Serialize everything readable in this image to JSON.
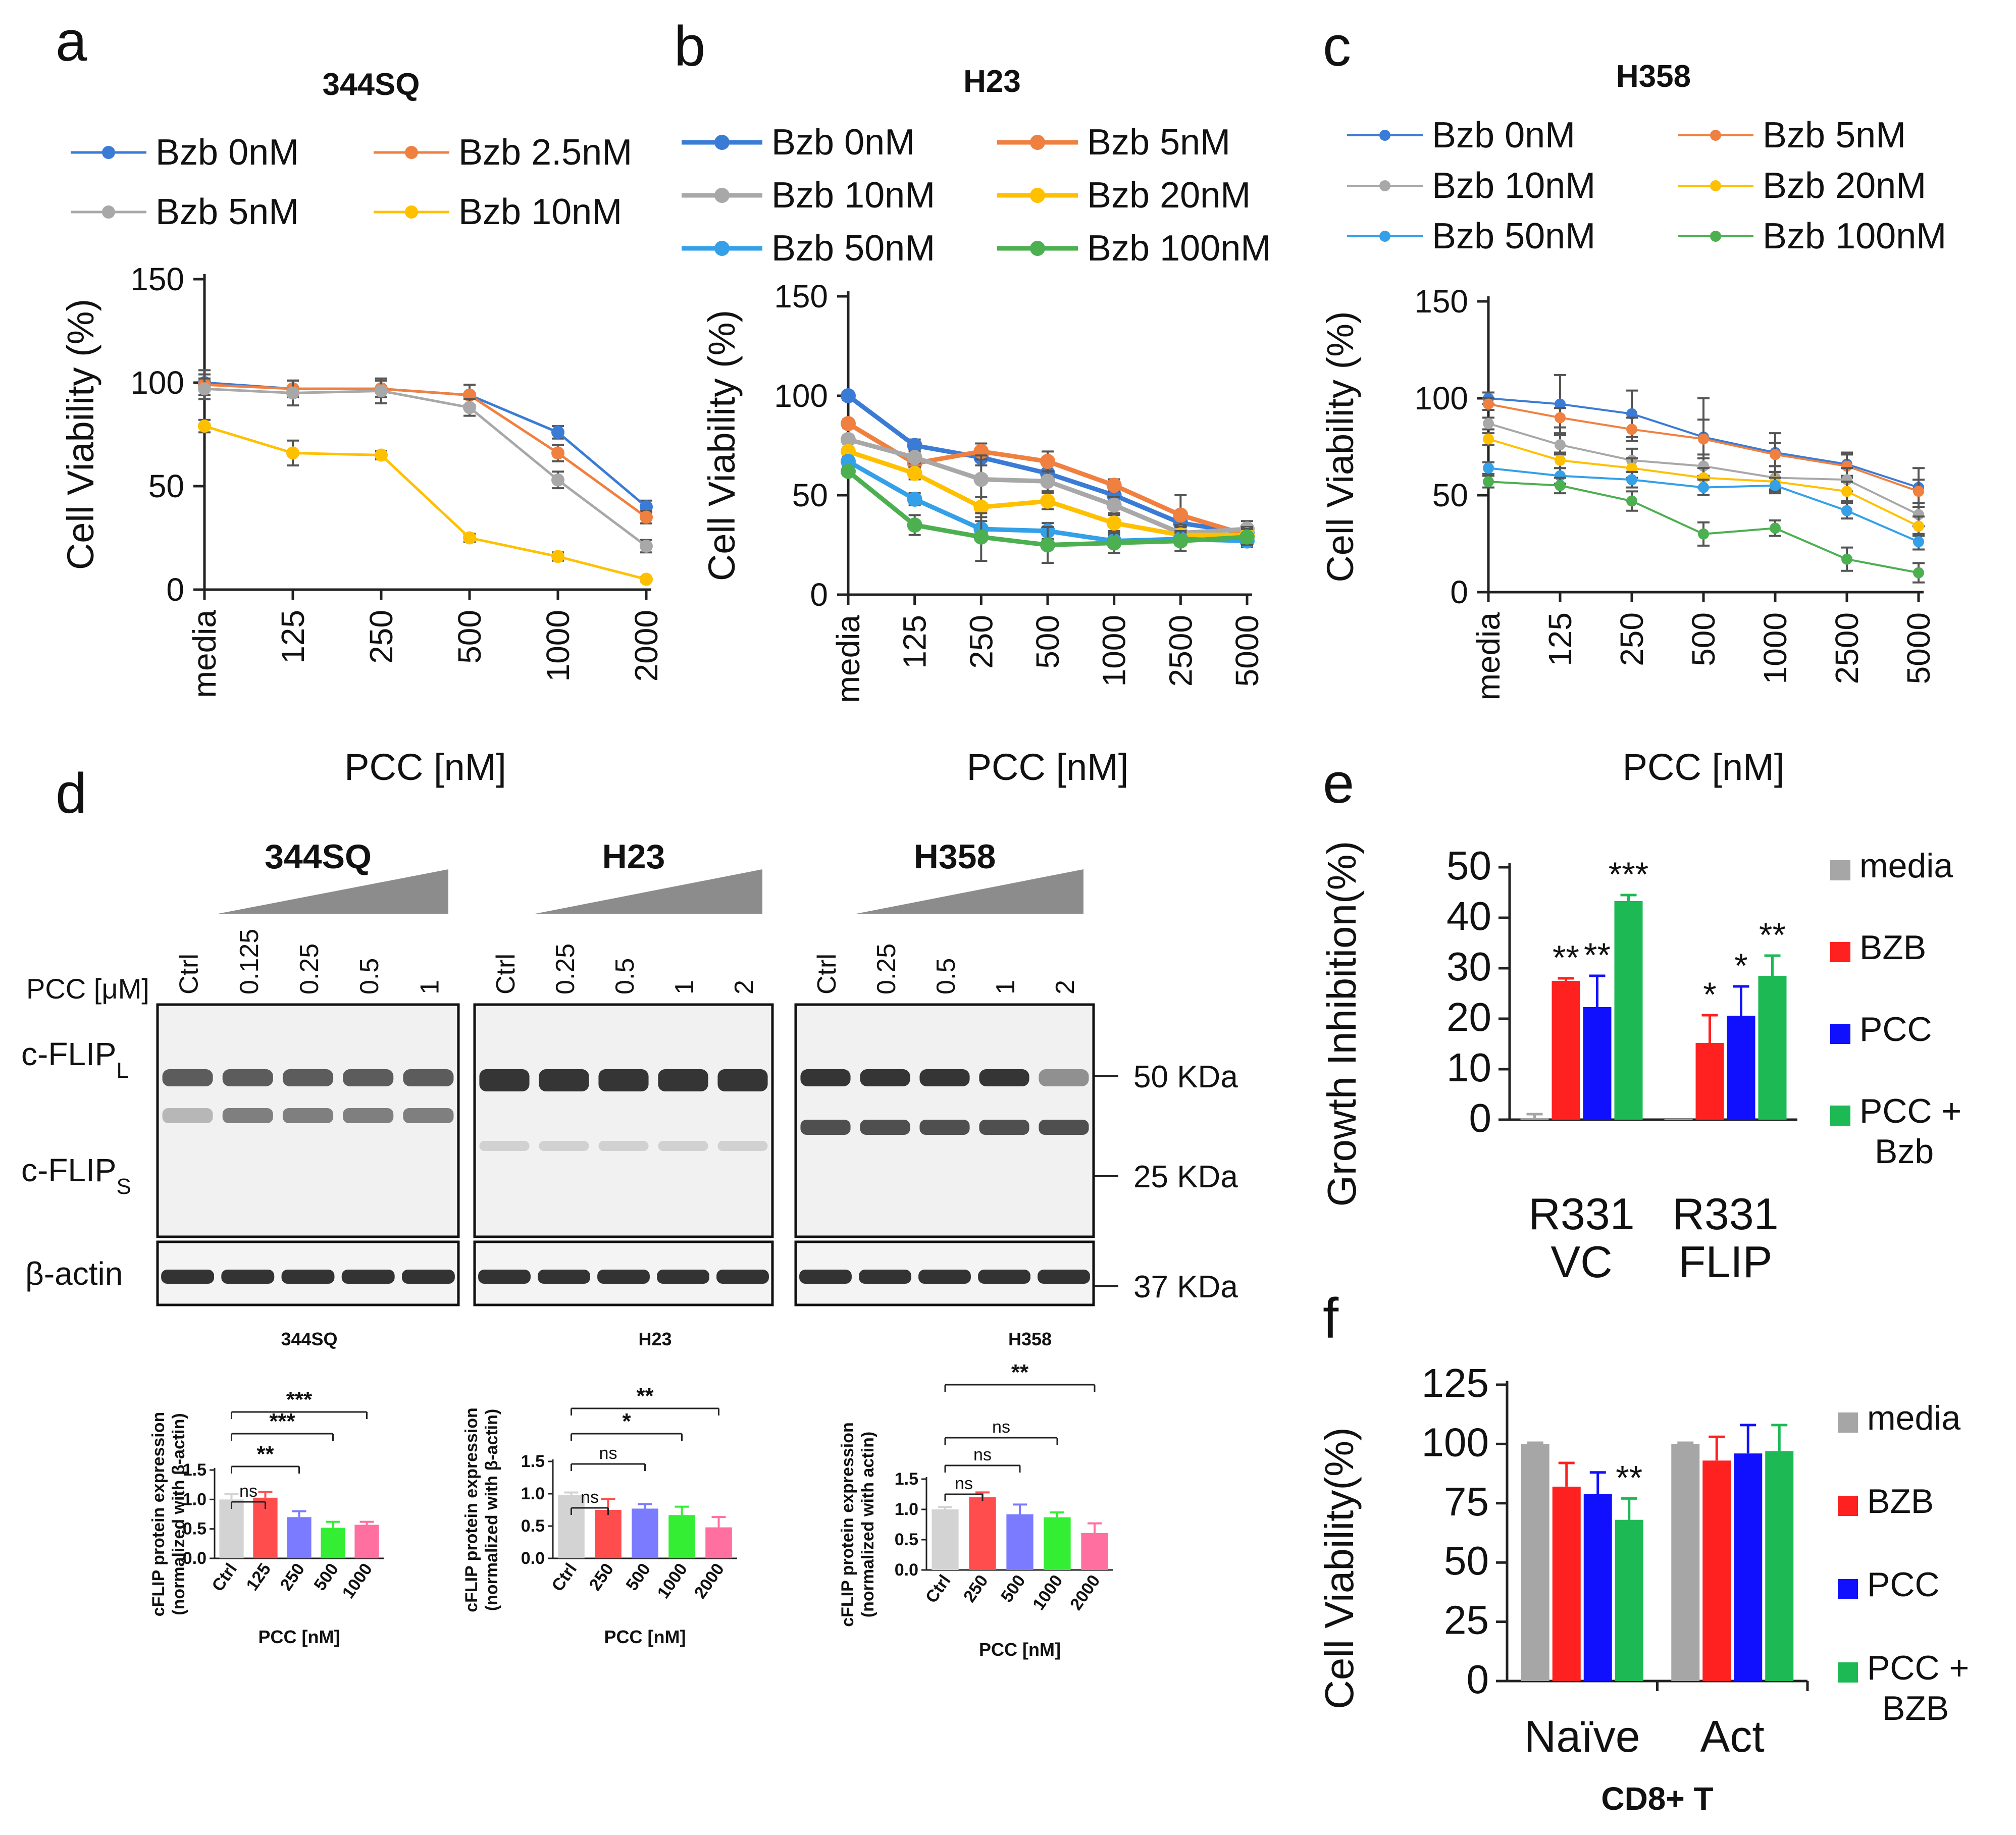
{
  "colors": {
    "bzb0": "#3a7bd5",
    "bzb2_5": "#f08040",
    "bzb5_gray": "#a8a8a8",
    "bzb10_yellow": "#ffc000",
    "bzb5_orange": "#f08040",
    "bzb10_gray": "#a8a8a8",
    "bzb20_yellow": "#ffc000",
    "bzb50_blue": "#33a0e8",
    "bzb100_green": "#4caf50",
    "media_gray": "#a6a6a6",
    "bzb_red": "#ff2020",
    "pcc_blue": "#1010ff",
    "combo_green": "#1db954"
  },
  "panels": {
    "a": {
      "letter": "a"
    },
    "b": {
      "letter": "b"
    },
    "c": {
      "letter": "c"
    },
    "d": {
      "letter": "d"
    },
    "e": {
      "letter": "e"
    },
    "f": {
      "letter": "f"
    }
  },
  "chart_data": [
    {
      "id": "a",
      "type": "line",
      "title": "344SQ",
      "xlabel": "PCC [nM]",
      "ylabel": "Cell Viability (%)",
      "categories": [
        "media",
        "125",
        "250",
        "500",
        "1000",
        "2000"
      ],
      "ylim": [
        0,
        150
      ],
      "yticks": [
        0,
        50,
        100,
        150
      ],
      "series": [
        {
          "name": "Bzb 0nM",
          "color": "#3a7bd5",
          "values": [
            100,
            97,
            97,
            94,
            76,
            40
          ],
          "err": [
            6,
            4,
            4,
            5,
            3,
            3
          ]
        },
        {
          "name": "Bzb 2.5nM",
          "color": "#f08040",
          "values": [
            99,
            97,
            97,
            94,
            66,
            35
          ],
          "err": [
            5,
            4,
            4,
            5,
            4,
            3
          ]
        },
        {
          "name": "Bzb 5nM",
          "color": "#a8a8a8",
          "values": [
            97,
            95,
            96,
            88,
            53,
            21
          ],
          "err": [
            5,
            6,
            6,
            4,
            4,
            3
          ]
        },
        {
          "name": "Bzb 10nM",
          "color": "#ffc000",
          "values": [
            79,
            66,
            65,
            25,
            16,
            5
          ],
          "err": [
            3,
            6,
            2,
            2,
            2,
            1
          ]
        }
      ]
    },
    {
      "id": "b",
      "type": "line",
      "title": "H23",
      "xlabel": "PCC [nM]",
      "ylabel": "Cell Viability  (%)",
      "categories": [
        "media",
        "125",
        "250",
        "500",
        "1000",
        "2500",
        "5000"
      ],
      "ylim": [
        0,
        150
      ],
      "yticks": [
        0,
        50,
        100,
        150
      ],
      "series": [
        {
          "name": "Bzb 0nM",
          "color": "#3a7bd5",
          "values": [
            100,
            75,
            69,
            61,
            50,
            36,
            31
          ],
          "err": [
            2,
            3,
            4,
            4,
            4,
            5,
            4
          ]
        },
        {
          "name": "Bzb 5nM",
          "color": "#f08040",
          "values": [
            86,
            66,
            72,
            67,
            55,
            40,
            30
          ],
          "err": [
            2,
            3,
            4,
            5,
            3,
            10,
            4
          ]
        },
        {
          "name": "Bzb 10nM",
          "color": "#a8a8a8",
          "values": [
            78,
            69,
            58,
            57,
            45,
            31,
            33
          ],
          "err": [
            2,
            3,
            12,
            5,
            4,
            4,
            4
          ]
        },
        {
          "name": "Bzb 20nM",
          "color": "#ffc000",
          "values": [
            72,
            61,
            44,
            47,
            36,
            30,
            30
          ],
          "err": [
            2,
            3,
            5,
            4,
            4,
            4,
            4
          ]
        },
        {
          "name": "Bzb 50nM",
          "color": "#33a0e8",
          "values": [
            67,
            48,
            33,
            32,
            27,
            28,
            27
          ],
          "err": [
            2,
            3,
            4,
            4,
            3,
            3,
            3
          ]
        },
        {
          "name": "Bzb 100nM",
          "color": "#4caf50",
          "values": [
            62,
            35,
            29,
            25,
            26,
            27,
            29
          ],
          "err": [
            2,
            5,
            12,
            9,
            5,
            5,
            4
          ]
        }
      ]
    },
    {
      "id": "c",
      "type": "line",
      "title": "H358",
      "xlabel": "PCC [nM]",
      "ylabel": "Cell Viability (%)",
      "categories": [
        "media",
        "125",
        "250",
        "500",
        "1000",
        "2500",
        "5000"
      ],
      "ylim": [
        0,
        150
      ],
      "yticks": [
        0,
        50,
        100,
        150
      ],
      "series": [
        {
          "name": "Bzb 0nM",
          "color": "#3a7bd5",
          "values": [
            100,
            97,
            92,
            80,
            72,
            66,
            54
          ],
          "err": [
            3,
            15,
            12,
            20,
            10,
            6,
            10
          ]
        },
        {
          "name": "Bzb 5nM",
          "color": "#f08040",
          "values": [
            97,
            90,
            84,
            79,
            71,
            65,
            52
          ],
          "err": [
            3,
            5,
            6,
            10,
            6,
            6,
            6
          ]
        },
        {
          "name": "Bzb 10nM",
          "color": "#a8a8a8",
          "values": [
            87,
            76,
            68,
            65,
            59,
            58,
            40
          ],
          "err": [
            3,
            5,
            6,
            6,
            6,
            6,
            6
          ]
        },
        {
          "name": "Bzb 20nM",
          "color": "#ffc000",
          "values": [
            79,
            68,
            64,
            59,
            57,
            52,
            34
          ],
          "err": [
            3,
            4,
            5,
            5,
            5,
            5,
            5
          ]
        },
        {
          "name": "Bzb 50nM",
          "color": "#33a0e8",
          "values": [
            64,
            60,
            58,
            54,
            55,
            42,
            26
          ],
          "err": [
            3,
            4,
            4,
            4,
            4,
            4,
            4
          ]
        },
        {
          "name": "Bzb 100nM",
          "color": "#4caf50",
          "values": [
            57,
            55,
            47,
            30,
            33,
            17,
            10
          ],
          "err": [
            3,
            4,
            5,
            6,
            4,
            6,
            5
          ]
        }
      ]
    },
    {
      "id": "d1",
      "type": "bar",
      "title": "344SQ",
      "xlabel": "PCC [nM]",
      "ylabel_line1": "cFLIP protein expression",
      "ylabel_line2": "(normalized with β-actin)",
      "categories": [
        "Ctrl",
        "125",
        "250",
        "500",
        "1000"
      ],
      "values": [
        1.0,
        1.03,
        0.7,
        0.52,
        0.57
      ],
      "err": [
        0.09,
        0.1,
        0.1,
        0.1,
        0.05
      ],
      "bar_colors": [
        "#d3d3d3",
        "#ff4d4d",
        "#7b7bff",
        "#33ee33",
        "#ff6f9f"
      ],
      "ylim": [
        0,
        1.5
      ],
      "yticks": [
        "0.0",
        "0.5",
        "1.0",
        "1.5"
      ],
      "significance": [
        {
          "to": "125",
          "label": "ns"
        },
        {
          "to": "250",
          "label": "**"
        },
        {
          "to": "500",
          "label": "***"
        },
        {
          "to": "1000",
          "label": "***"
        }
      ]
    },
    {
      "id": "d2",
      "type": "bar",
      "title": "H23",
      "xlabel": "PCC [nM]",
      "ylabel_line1": "cFLIP protein expression",
      "ylabel_line2": "(normalized with β-actin)",
      "categories": [
        "Ctrl",
        "250",
        "500",
        "1000",
        "2000"
      ],
      "values": [
        0.98,
        0.75,
        0.77,
        0.67,
        0.48
      ],
      "err": [
        0.04,
        0.17,
        0.07,
        0.13,
        0.16
      ],
      "bar_colors": [
        "#d3d3d3",
        "#ff4d4d",
        "#7b7bff",
        "#33ee33",
        "#ff6f9f"
      ],
      "ylim": [
        0,
        1.5
      ],
      "yticks": [
        "0.0",
        "0.5",
        "1.0",
        "1.5"
      ],
      "significance": [
        {
          "to": "250",
          "label": "ns"
        },
        {
          "to": "500",
          "label": "ns"
        },
        {
          "to": "1000",
          "label": "*"
        },
        {
          "to": "2000",
          "label": "**"
        }
      ]
    },
    {
      "id": "d3",
      "type": "bar",
      "title": "H358",
      "xlabel": "PCC [nM]",
      "ylabel_line1": "cFLIP protein expression",
      "ylabel_line2": "(normalized with actin)",
      "categories": [
        "Ctrl",
        "250",
        "500",
        "1000",
        "2000"
      ],
      "values": [
        1.0,
        1.2,
        0.92,
        0.87,
        0.61
      ],
      "err": [
        0.04,
        0.08,
        0.16,
        0.08,
        0.16
      ],
      "bar_colors": [
        "#d3d3d3",
        "#ff4d4d",
        "#7b7bff",
        "#33ee33",
        "#ff6f9f"
      ],
      "ylim": [
        0,
        1.5
      ],
      "yticks": [
        "0.0",
        "0.5",
        "1.0",
        "1.5"
      ],
      "significance": [
        {
          "to": "250",
          "label": "ns"
        },
        {
          "to": "500",
          "label": "ns"
        },
        {
          "to": "1000",
          "label": "ns"
        },
        {
          "to": "2000",
          "label": "**"
        }
      ]
    },
    {
      "id": "e",
      "type": "bar",
      "title": "",
      "xlabel": "",
      "ylabel": "Growth Inhibition(%)",
      "groups": [
        [
          "R331",
          "VC"
        ],
        [
          "R331",
          "FLIP"
        ]
      ],
      "ylim": [
        0,
        50
      ],
      "yticks": [
        0,
        10,
        20,
        30,
        40,
        50
      ],
      "series": [
        {
          "name": "media",
          "color": "#a6a6a6",
          "values": [
            0.3,
            0.1
          ],
          "err": [
            0.8,
            0
          ]
        },
        {
          "name": "BZB",
          "color": "#ff2020",
          "values": [
            27.5,
            15.2
          ],
          "err": [
            0.5,
            5.5
          ]
        },
        {
          "name": "PCC",
          "color": "#1010ff",
          "values": [
            22.3,
            20.6
          ],
          "err": [
            6.2,
            5.8
          ]
        },
        {
          "name": "PCC + Bzb",
          "color": "#1db954",
          "values": [
            43.3,
            28.5
          ],
          "err": [
            1.2,
            4.0
          ]
        }
      ],
      "annotations": [
        [
          "",
          "**",
          "**",
          "***"
        ],
        [
          "",
          "*",
          "*",
          "**"
        ]
      ]
    },
    {
      "id": "f",
      "type": "bar",
      "title": "",
      "xlabel": "CD8+ T",
      "ylabel": "Cell Viability(%)",
      "groups": [
        [
          "Naïve"
        ],
        [
          "Act"
        ]
      ],
      "ylim": [
        0,
        125
      ],
      "yticks": [
        0,
        25,
        50,
        75,
        100,
        125
      ],
      "series": [
        {
          "name": "media",
          "color": "#a6a6a6",
          "values": [
            100,
            100
          ],
          "err": [
            0.5,
            0.5
          ]
        },
        {
          "name": "BZB",
          "color": "#ff2020",
          "values": [
            82,
            93
          ],
          "err": [
            10,
            10
          ]
        },
        {
          "name": "PCC",
          "color": "#1010ff",
          "values": [
            79,
            96
          ],
          "err": [
            9,
            12
          ]
        },
        {
          "name": "PCC + BZB",
          "color": "#1db954",
          "values": [
            68,
            97
          ],
          "err": [
            9,
            11
          ]
        }
      ],
      "annotations": [
        [
          "",
          "",
          "",
          "**"
        ],
        [
          "",
          "",
          "",
          ""
        ]
      ]
    }
  ],
  "western_blot": {
    "treatment_label": "PCC [μM]",
    "blots": [
      {
        "cell_line": "344SQ",
        "lanes": [
          "Ctrl",
          "0.125",
          "0.25",
          "0.5",
          "1"
        ]
      },
      {
        "cell_line": "H23",
        "lanes": [
          "Ctrl",
          "0.25",
          "0.5",
          "1",
          "2"
        ]
      },
      {
        "cell_line": "H358",
        "lanes": [
          "Ctrl",
          "0.25",
          "0.5",
          "1",
          "2"
        ]
      }
    ],
    "band_labels": {
      "flip_l_main": "c-FLIP",
      "flip_l_sub": "L",
      "flip_s_main": "c-FLIP",
      "flip_s_sub": "S",
      "actin": "β-actin"
    },
    "markers": [
      "50 KDa",
      "25 KDa",
      "37 KDa"
    ]
  }
}
